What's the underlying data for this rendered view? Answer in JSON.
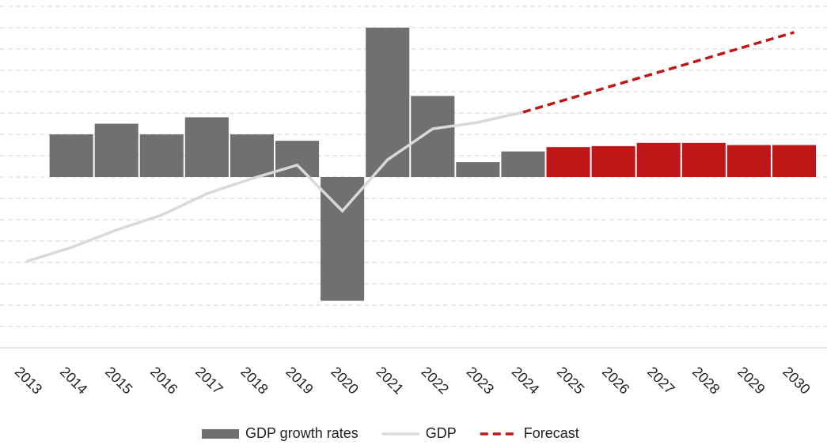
{
  "chart_data": {
    "type": "bar",
    "categories": [
      "2013",
      "2014",
      "2015",
      "2016",
      "2017",
      "2018",
      "2019",
      "2020",
      "2021",
      "2022",
      "2023",
      "2024",
      "2025",
      "2026",
      "2027",
      "2028",
      "2029",
      "2030"
    ],
    "series": [
      {
        "name": "GDP growth rates",
        "type": "bar",
        "color": "#707072",
        "colors": [
          "#707072",
          "#707072",
          "#707072",
          "#707072",
          "#707072",
          "#707072",
          "#707072",
          "#707072",
          "#707072",
          "#707072",
          "#707072",
          "#707072",
          "#bf1717",
          "#bf1717",
          "#bf1717",
          "#bf1717",
          "#bf1717",
          "#bf1717"
        ],
        "values": [
          null,
          2.0,
          2.5,
          2.0,
          2.8,
          2.0,
          1.7,
          -5.8,
          7.0,
          3.8,
          0.7,
          1.2,
          1.4,
          1.45,
          1.6,
          1.6,
          1.5,
          1.5
        ]
      },
      {
        "name": "GDP",
        "type": "line",
        "color": "#d9d9d9",
        "dashed": false,
        "values": [
          -3.96,
          -3.3,
          -2.48,
          -1.78,
          -0.78,
          -0.07,
          0.56,
          -1.59,
          0.81,
          2.26,
          2.56,
          3.04,
          null,
          null,
          null,
          null,
          null,
          null
        ]
      },
      {
        "name": "Forecast",
        "type": "line",
        "color": "#bf1717",
        "dashed": true,
        "values": [
          null,
          null,
          null,
          null,
          null,
          null,
          null,
          null,
          null,
          null,
          null,
          3.04,
          3.66,
          4.29,
          4.91,
          5.53,
          6.16,
          6.78
        ]
      }
    ],
    "ylim": [
      -8,
      8
    ],
    "yticks": [
      -8,
      -7,
      -6,
      -5,
      -4,
      -3,
      -2,
      -1,
      0,
      1,
      2,
      3,
      4,
      5,
      6,
      7,
      8
    ],
    "grid": true,
    "legend": "bottom"
  }
}
